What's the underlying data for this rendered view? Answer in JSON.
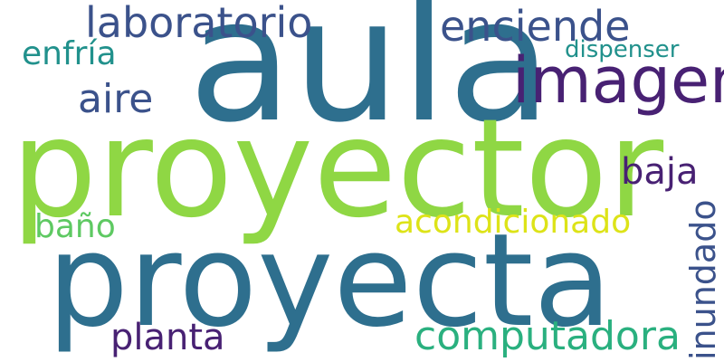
{
  "word_cloud": {
    "words": [
      {
        "text": "aula",
        "color": "#2e6f8e"
      },
      {
        "text": "proyector",
        "color": "#8fd744"
      },
      {
        "text": "proyecta",
        "color": "#2e6f8e"
      },
      {
        "text": "imagen",
        "color": "#482173"
      },
      {
        "text": "laboratorio",
        "color": "#3b528b"
      },
      {
        "text": "enciende",
        "color": "#3b528b"
      },
      {
        "text": "enfría",
        "color": "#21918c"
      },
      {
        "text": "dispenser",
        "color": "#21918c"
      },
      {
        "text": "aire",
        "color": "#3b528b"
      },
      {
        "text": "baja",
        "color": "#482173"
      },
      {
        "text": "acondicionado",
        "color": "#dde318"
      },
      {
        "text": "baño",
        "color": "#5ec962"
      },
      {
        "text": "computadora",
        "color": "#2ab07f"
      },
      {
        "text": "planta",
        "color": "#482173"
      },
      {
        "text": "inundado",
        "color": "#3b528b"
      }
    ]
  }
}
